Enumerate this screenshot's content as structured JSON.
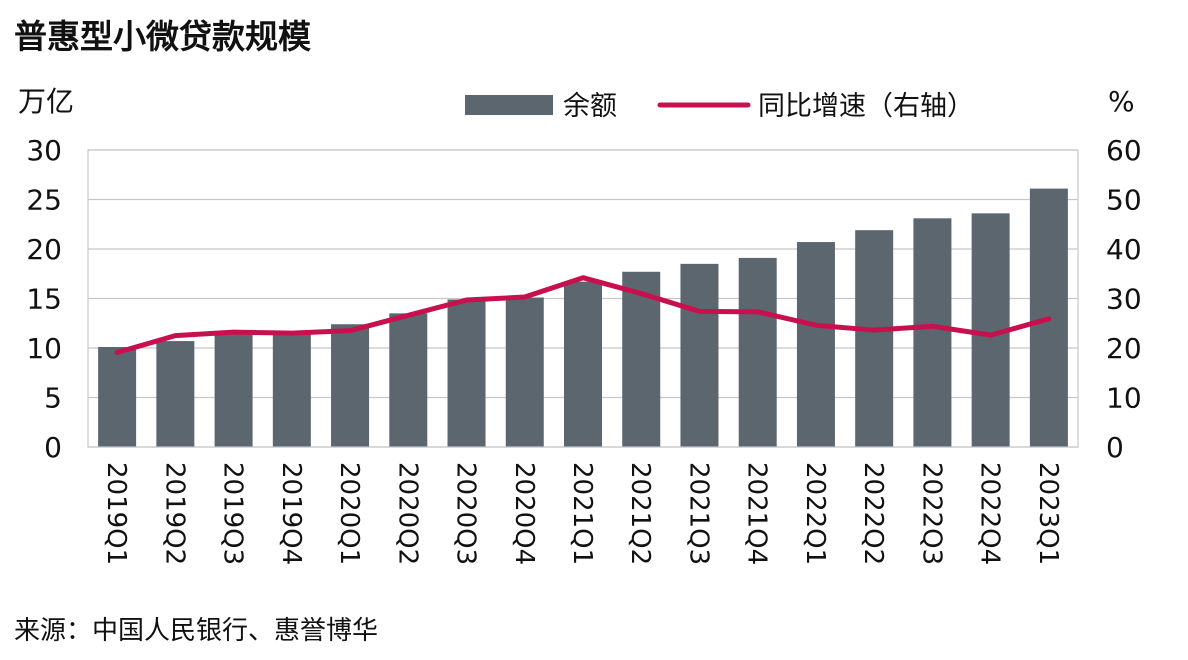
{
  "title": "普惠型小微贷款规模",
  "source": "来源：中国人民银行、惠誉博华",
  "colors": {
    "bar": "#5c666e",
    "line": "#c8104f",
    "grid": "#c8c8c8"
  },
  "chart_data": {
    "type": "bar",
    "title": "普惠型小微贷款规模",
    "categories": [
      "2019Q1",
      "2019Q2",
      "2019Q3",
      "2019Q4",
      "2020Q1",
      "2020Q2",
      "2020Q3",
      "2020Q4",
      "2021Q1",
      "2021Q2",
      "2021Q3",
      "2021Q4",
      "2022Q1",
      "2022Q2",
      "2022Q3",
      "2022Q4",
      "2023Q1"
    ],
    "series": [
      {
        "name": "余额",
        "type": "bar",
        "axis": "left",
        "values": [
          10.1,
          10.7,
          11.6,
          11.6,
          12.4,
          13.5,
          14.9,
          15.1,
          16.7,
          17.7,
          18.5,
          19.1,
          20.7,
          21.9,
          23.1,
          23.6,
          26.1
        ]
      },
      {
        "name": "同比增速（右轴）",
        "type": "line",
        "axis": "right",
        "values": [
          19.1,
          22.5,
          23.2,
          23.0,
          23.5,
          26.6,
          29.7,
          30.3,
          34.2,
          31.0,
          27.4,
          27.3,
          24.6,
          23.6,
          24.4,
          22.6,
          25.9
        ]
      }
    ],
    "left_axis": {
      "unit": "万亿",
      "ylim": [
        0,
        30
      ],
      "ticks": [
        "0",
        "5",
        "10",
        "15",
        "20",
        "25",
        "30"
      ]
    },
    "right_axis": {
      "unit": "%",
      "ylim": [
        0,
        60
      ],
      "ticks": [
        "0",
        "10",
        "20",
        "30",
        "40",
        "50",
        "60"
      ]
    },
    "grid": true,
    "legend": "top"
  }
}
